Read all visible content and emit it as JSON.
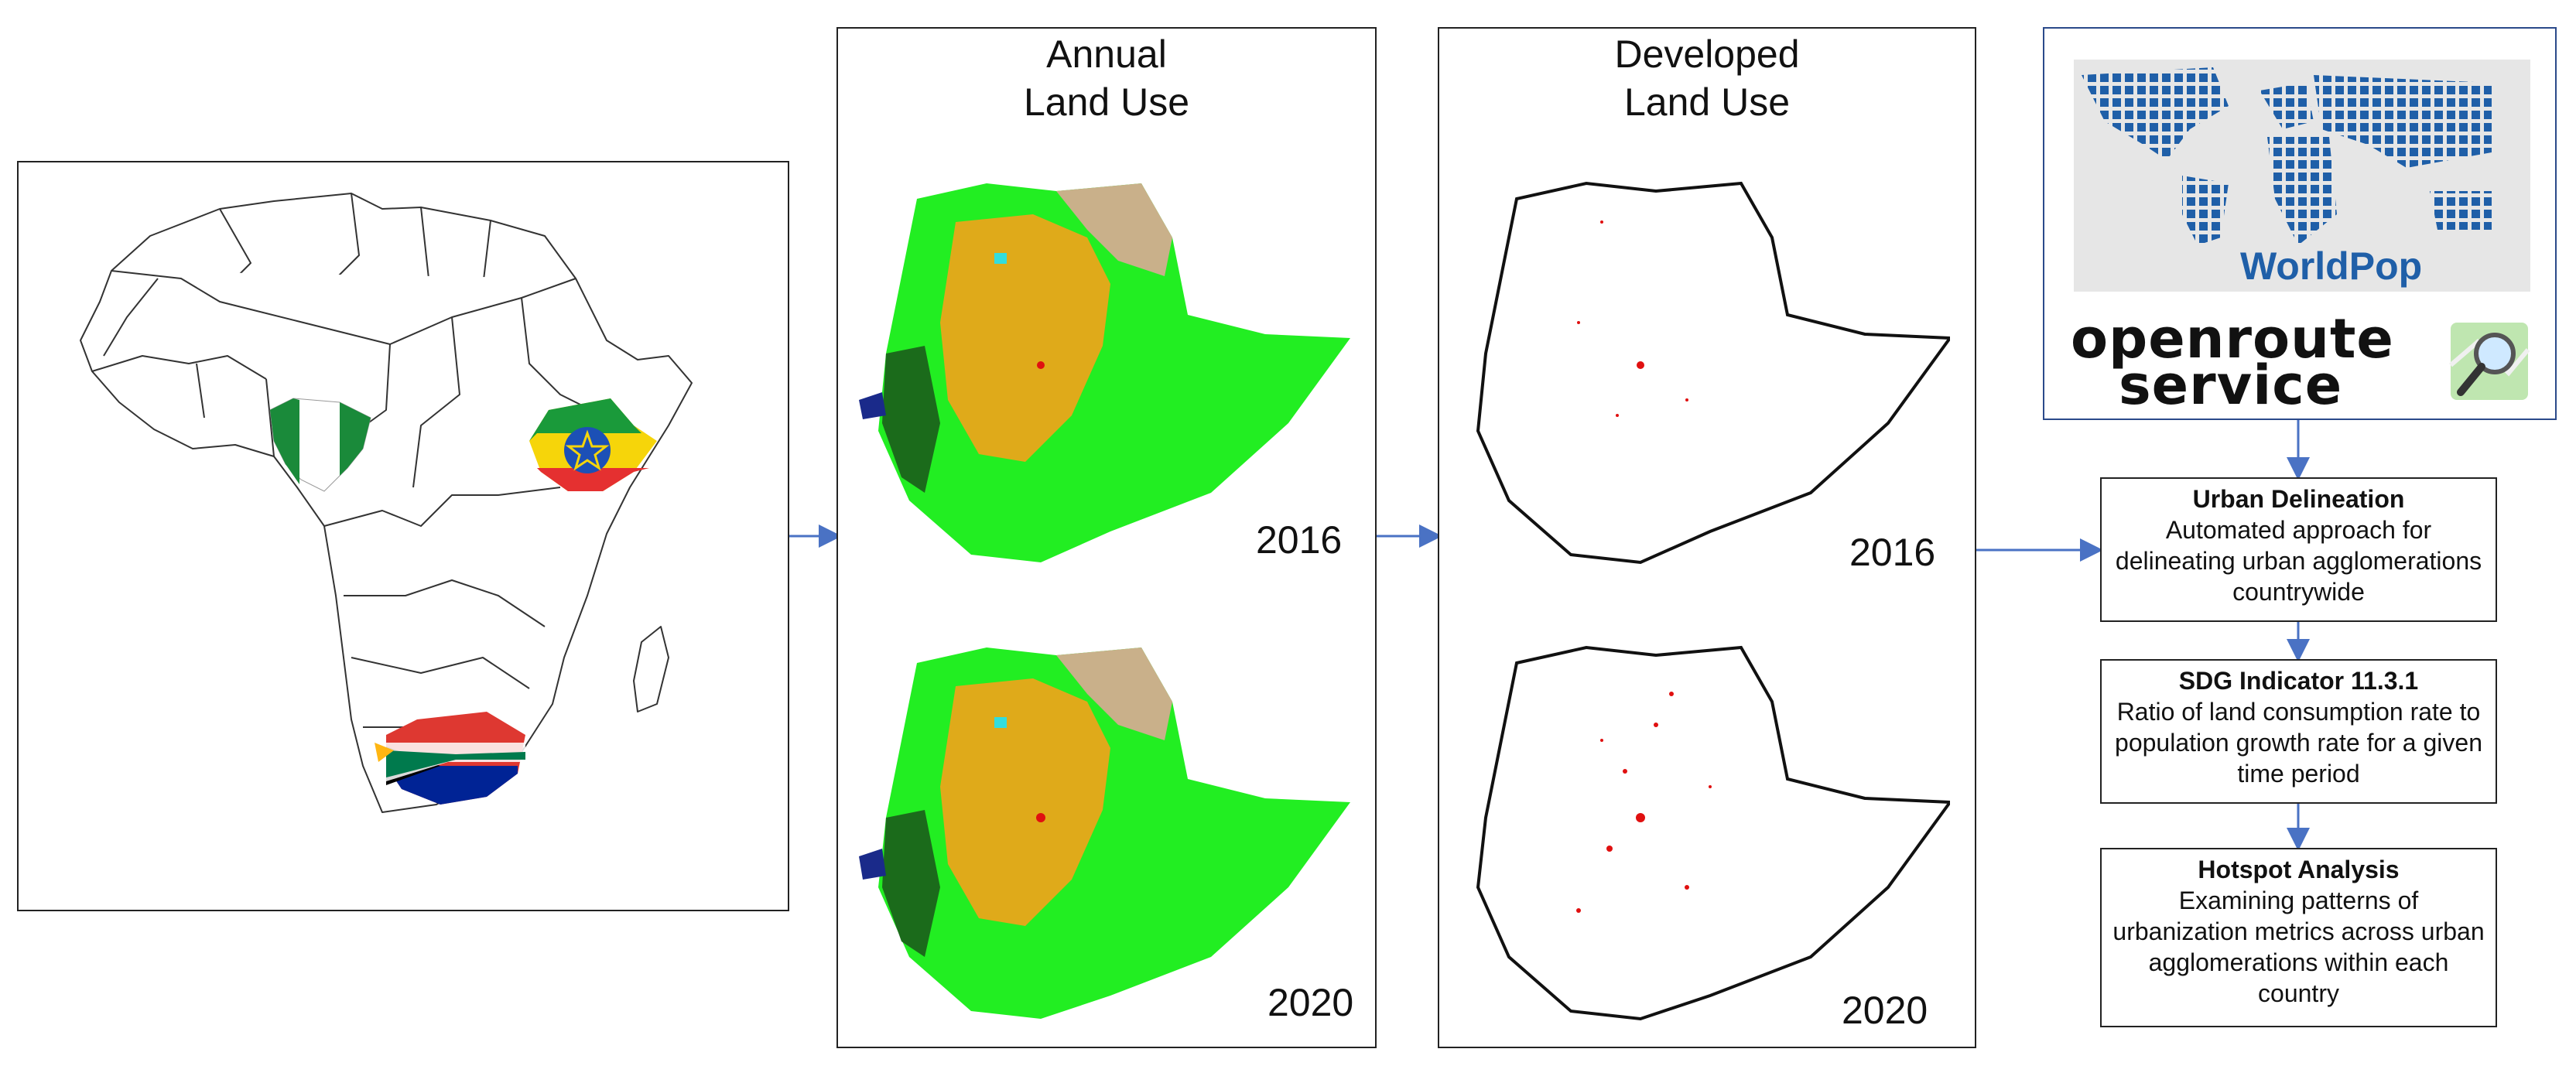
{
  "panels": {
    "annual": {
      "title_line1": "Annual",
      "title_line2": "Land Use",
      "year_top": "2016",
      "year_bottom": "2020"
    },
    "developed": {
      "title_line1": "Developed",
      "title_line2": "Land Use",
      "year_top": "2016",
      "year_bottom": "2020"
    }
  },
  "sources": {
    "worldpop": "WorldPop",
    "openroute_line1": "openroute",
    "openroute_line2": "service"
  },
  "flow": [
    {
      "heading": "Urban Delineation",
      "desc": "Automated approach for delineating urban agglomerations countrywide"
    },
    {
      "heading": "SDG Indicator 11.3.1",
      "desc": "Ratio of land consumption rate to population growth rate for a given time period"
    },
    {
      "heading": "Hotspot Analysis",
      "desc": "Examining patterns of urbanization metrics across urban agglomerations within each country"
    }
  ],
  "map": {
    "countries_highlighted": [
      "nigeria-flag-icon",
      "ethiopia-flag-icon",
      "south-africa-flag-icon"
    ]
  },
  "colors": {
    "arrow": "#4a72c4",
    "landuse_green": "#22ee22",
    "landuse_orange": "#f4a21a",
    "landuse_dark": "#1b6b1b",
    "landuse_tan": "#c9b08a",
    "developed_red": "#e01010",
    "worldpop_blue": "#1f5fa8"
  }
}
